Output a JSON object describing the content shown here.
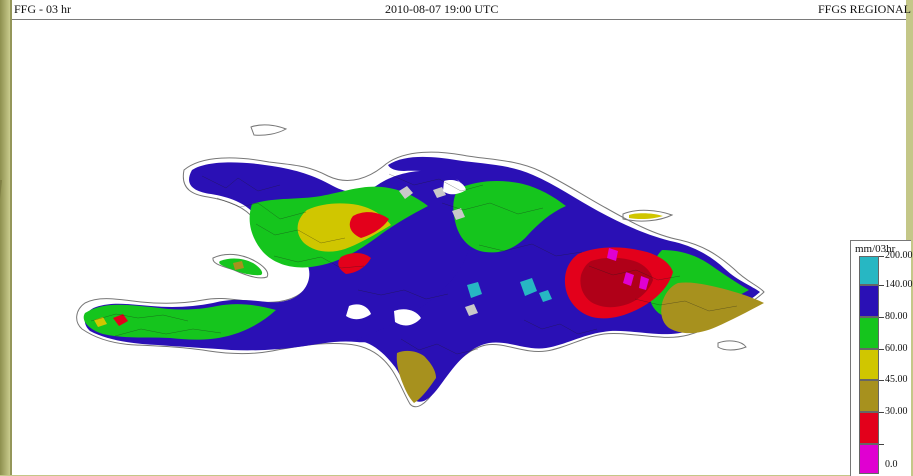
{
  "header": {
    "left": "FFG - 03 hr",
    "center": "2010-08-07 19:00 UTC",
    "right": "FFGS REGIONAL"
  },
  "legend": {
    "title": "mm/03hr",
    "items": [
      {
        "label": "200.00",
        "color": "#27b7c3"
      },
      {
        "label": "140.00",
        "color": "#2a10b5"
      },
      {
        "label": "80.00",
        "color": "#15c51d"
      },
      {
        "label": "60.00",
        "color": "#d0c600"
      },
      {
        "label": "45.00",
        "color": "#a7911e"
      },
      {
        "label": "30.00",
        "color": "#e3001b"
      },
      {
        "label": "0.0",
        "color": "#e000d1"
      }
    ]
  },
  "map_colors": {
    "blue": "#2a10b5",
    "green": "#15c51d",
    "yellow": "#d0c600",
    "olive": "#a7911e",
    "red": "#e3001b",
    "darkred": "#b00018",
    "magenta": "#e000d1",
    "cyan": "#27b7c3",
    "gray": "#c9c9c9",
    "outline": "#555555"
  }
}
